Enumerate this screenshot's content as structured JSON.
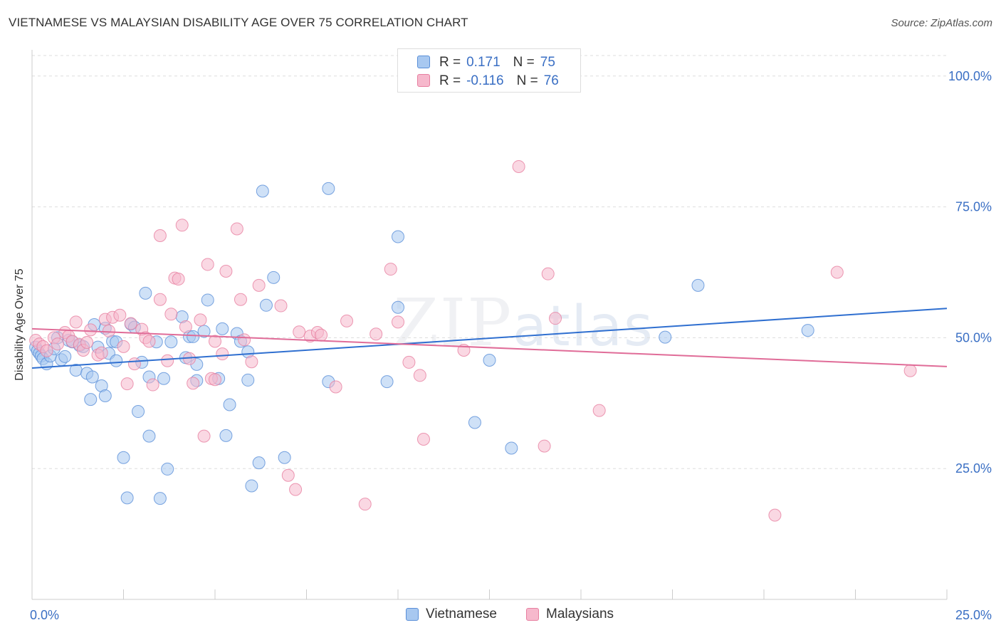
{
  "title": "VIETNAMESE VS MALAYSIAN DISABILITY AGE OVER 75 CORRELATION CHART",
  "source": "Source: ZipAtlas.com",
  "watermark": {
    "zip": "ZIP",
    "atlas": "atlas"
  },
  "legend": {
    "rows": [
      {
        "r_label": "R =",
        "r_value": "0.171",
        "n_label": "N =",
        "n_value": "75"
      },
      {
        "r_label": "R =",
        "r_value": "-0.116",
        "n_label": "N =",
        "n_value": "76"
      }
    ]
  },
  "colors": {
    "vietnamese_fill": "#a8c8f0",
    "vietnamese_stroke": "#5a8fd8",
    "vietnamese_line": "#2f6fd0",
    "malaysian_fill": "#f6b8cc",
    "malaysian_stroke": "#e77fa0",
    "malaysian_line": "#e06c98",
    "tick_label": "#3a6fc4",
    "grid": "#dddddd"
  },
  "chart_data": {
    "type": "scatter",
    "title": "VIETNAMESE VS MALAYSIAN DISABILITY AGE OVER 75 CORRELATION CHART",
    "xlabel": "",
    "ylabel": "Disability Age Over 75",
    "xlim": [
      0,
      25
    ],
    "ylim": [
      0,
      105
    ],
    "x_tick_labels": [
      "0.0%",
      "25.0%"
    ],
    "y_ticks": [
      25,
      50,
      75,
      100
    ],
    "y_tick_labels": [
      "25.0%",
      "50.0%",
      "75.0%",
      "100.0%"
    ],
    "grid": true,
    "legend_position": "top-center",
    "series": [
      {
        "name": "Vietnamese",
        "r": 0.171,
        "n": 75,
        "trend": {
          "x": [
            0,
            25
          ],
          "y": [
            44.2,
            55.6
          ]
        },
        "points": [
          [
            0.1,
            48.2
          ],
          [
            0.15,
            47.5
          ],
          [
            0.2,
            47.0
          ],
          [
            0.25,
            46.5
          ],
          [
            0.3,
            46.0
          ],
          [
            0.4,
            45.0
          ],
          [
            0.5,
            46.5
          ],
          [
            0.6,
            47.9
          ],
          [
            0.7,
            50.0
          ],
          [
            0.8,
            45.8
          ],
          [
            0.9,
            46.4
          ],
          [
            1.0,
            49.5
          ],
          [
            1.1,
            49.2
          ],
          [
            1.2,
            43.8
          ],
          [
            1.3,
            48.5
          ],
          [
            1.4,
            48.3
          ],
          [
            1.5,
            43.2
          ],
          [
            1.6,
            38.2
          ],
          [
            1.65,
            42.5
          ],
          [
            1.7,
            52.5
          ],
          [
            1.8,
            48.2
          ],
          [
            1.9,
            40.8
          ],
          [
            2.0,
            51.8
          ],
          [
            2.0,
            38.9
          ],
          [
            2.1,
            47.0
          ],
          [
            2.2,
            49.3
          ],
          [
            2.3,
            49.2
          ],
          [
            2.3,
            45.6
          ],
          [
            2.5,
            27.1
          ],
          [
            2.6,
            19.4
          ],
          [
            2.7,
            52.6
          ],
          [
            2.8,
            52.0
          ],
          [
            2.9,
            35.9
          ],
          [
            3.0,
            45.3
          ],
          [
            3.1,
            58.5
          ],
          [
            3.2,
            42.5
          ],
          [
            3.2,
            31.2
          ],
          [
            3.4,
            49.2
          ],
          [
            3.5,
            19.3
          ],
          [
            3.6,
            42.2
          ],
          [
            3.7,
            24.9
          ],
          [
            3.8,
            49.2
          ],
          [
            4.1,
            54.0
          ],
          [
            4.2,
            46.2
          ],
          [
            4.3,
            50.2
          ],
          [
            4.4,
            50.2
          ],
          [
            4.5,
            44.9
          ],
          [
            4.5,
            41.8
          ],
          [
            4.7,
            51.2
          ],
          [
            4.8,
            57.2
          ],
          [
            5.1,
            42.2
          ],
          [
            5.2,
            51.7
          ],
          [
            5.3,
            31.3
          ],
          [
            5.4,
            37.2
          ],
          [
            5.6,
            50.8
          ],
          [
            5.7,
            49.3
          ],
          [
            5.9,
            47.3
          ],
          [
            5.9,
            41.9
          ],
          [
            6.0,
            21.7
          ],
          [
            6.2,
            26.1
          ],
          [
            6.3,
            78.0
          ],
          [
            6.4,
            56.2
          ],
          [
            6.6,
            61.5
          ],
          [
            6.9,
            27.1
          ],
          [
            8.1,
            41.6
          ],
          [
            8.1,
            78.5
          ],
          [
            9.7,
            41.6
          ],
          [
            10.0,
            55.8
          ],
          [
            10.0,
            69.3
          ],
          [
            12.1,
            33.8
          ],
          [
            12.5,
            45.7
          ],
          [
            13.1,
            28.9
          ],
          [
            17.3,
            50.1
          ],
          [
            18.2,
            60.0
          ],
          [
            21.2,
            51.4
          ]
        ]
      },
      {
        "name": "Malaysians",
        "r": -0.116,
        "n": 76,
        "trend": {
          "x": [
            0,
            25
          ],
          "y": [
            51.7,
            44.5
          ]
        },
        "points": [
          [
            0.1,
            49.5
          ],
          [
            0.2,
            48.8
          ],
          [
            0.3,
            48.3
          ],
          [
            0.4,
            47.5
          ],
          [
            0.6,
            50.0
          ],
          [
            0.7,
            48.8
          ],
          [
            0.9,
            51.0
          ],
          [
            1.0,
            50.3
          ],
          [
            1.1,
            49.3
          ],
          [
            1.2,
            53.0
          ],
          [
            1.3,
            48.7
          ],
          [
            1.4,
            47.6
          ],
          [
            1.5,
            49.1
          ],
          [
            1.6,
            51.5
          ],
          [
            1.8,
            46.7
          ],
          [
            1.9,
            47.1
          ],
          [
            2.0,
            53.5
          ],
          [
            2.1,
            51.3
          ],
          [
            2.2,
            53.9
          ],
          [
            2.4,
            54.3
          ],
          [
            2.5,
            48.3
          ],
          [
            2.6,
            41.2
          ],
          [
            2.7,
            52.7
          ],
          [
            2.8,
            45.0
          ],
          [
            3.0,
            51.6
          ],
          [
            3.1,
            50.0
          ],
          [
            3.2,
            49.3
          ],
          [
            3.3,
            41.0
          ],
          [
            3.5,
            57.3
          ],
          [
            3.5,
            69.5
          ],
          [
            3.7,
            45.6
          ],
          [
            3.8,
            54.5
          ],
          [
            3.9,
            61.4
          ],
          [
            4.0,
            61.2
          ],
          [
            4.1,
            71.5
          ],
          [
            4.2,
            52.1
          ],
          [
            4.3,
            46.0
          ],
          [
            4.4,
            41.3
          ],
          [
            4.6,
            53.4
          ],
          [
            4.7,
            31.2
          ],
          [
            4.8,
            64.0
          ],
          [
            4.9,
            42.2
          ],
          [
            5.0,
            42.0
          ],
          [
            5.0,
            49.3
          ],
          [
            5.2,
            46.9
          ],
          [
            5.3,
            62.7
          ],
          [
            5.6,
            70.8
          ],
          [
            5.7,
            57.3
          ],
          [
            5.8,
            49.6
          ],
          [
            6.0,
            45.4
          ],
          [
            6.2,
            60.0
          ],
          [
            6.8,
            56.1
          ],
          [
            7.0,
            23.7
          ],
          [
            7.2,
            21.0
          ],
          [
            7.3,
            51.1
          ],
          [
            7.6,
            50.3
          ],
          [
            7.8,
            51.0
          ],
          [
            7.9,
            50.5
          ],
          [
            8.3,
            40.6
          ],
          [
            8.6,
            53.2
          ],
          [
            9.1,
            18.2
          ],
          [
            9.4,
            50.7
          ],
          [
            9.8,
            63.1
          ],
          [
            10.0,
            53.0
          ],
          [
            10.3,
            45.3
          ],
          [
            10.6,
            42.8
          ],
          [
            10.7,
            30.6
          ],
          [
            13.3,
            82.7
          ],
          [
            14.0,
            29.3
          ],
          [
            14.1,
            62.2
          ],
          [
            14.3,
            53.7
          ],
          [
            15.5,
            36.1
          ],
          [
            20.3,
            16.1
          ],
          [
            22.0,
            62.5
          ],
          [
            24.0,
            43.7
          ],
          [
            11.8,
            47.6
          ]
        ]
      }
    ]
  }
}
